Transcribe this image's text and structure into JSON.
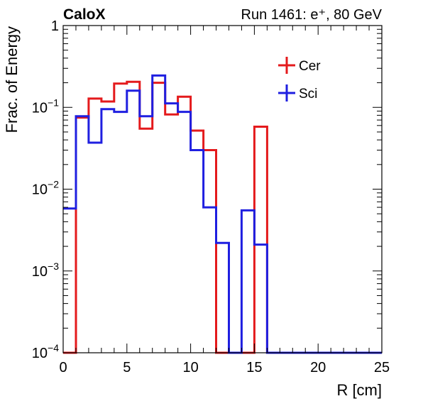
{
  "header": {
    "left_label": "CaloX",
    "right_label": "Run 1461: e⁺, 80 GeV"
  },
  "chart_data": {
    "type": "histogram-step",
    "xlabel": "R [cm]",
    "ylabel": "Frac. of Energy",
    "xlim": [
      0,
      25
    ],
    "ylim": [
      0.0001,
      1
    ],
    "y_scale": "log",
    "x_ticks": [
      0,
      5,
      10,
      15,
      20,
      25
    ],
    "x_tick_labels": [
      "0",
      "5",
      "10",
      "15",
      "20",
      "25"
    ],
    "y_tick_labels": [
      {
        "value": 1,
        "base": "1",
        "exp": ""
      },
      {
        "value": 0.1,
        "base": "10",
        "exp": "−1"
      },
      {
        "value": 0.01,
        "base": "10",
        "exp": "−2"
      },
      {
        "value": 0.001,
        "base": "10",
        "exp": "−3"
      },
      {
        "value": 0.0001,
        "base": "10",
        "exp": "−4"
      }
    ],
    "bin_edges": [
      0,
      1,
      2,
      3,
      4,
      5,
      6,
      7,
      8,
      9,
      10,
      11,
      12,
      13,
      14,
      15,
      16,
      17,
      18,
      19,
      20,
      21,
      22,
      23,
      24,
      25
    ],
    "legend_position": "top-right",
    "series": [
      {
        "name": "Cer",
        "color": "#e41a1c",
        "values": [
          0,
          0.075,
          0.128,
          0.118,
          0.195,
          0.205,
          0.055,
          0.2,
          0.082,
          0.135,
          0.052,
          0.03,
          0,
          0,
          0,
          0.058,
          0,
          0,
          0,
          0,
          0,
          0,
          0,
          0,
          0
        ]
      },
      {
        "name": "Sci",
        "color": "#1f1fe0",
        "values": [
          0.0058,
          0.078,
          0.037,
          0.095,
          0.088,
          0.16,
          0.078,
          0.245,
          0.112,
          0.088,
          0.03,
          0.006,
          0.0022,
          0,
          0.0055,
          0.0021,
          0,
          0,
          0,
          0,
          0,
          0,
          0,
          0,
          0
        ]
      }
    ]
  }
}
